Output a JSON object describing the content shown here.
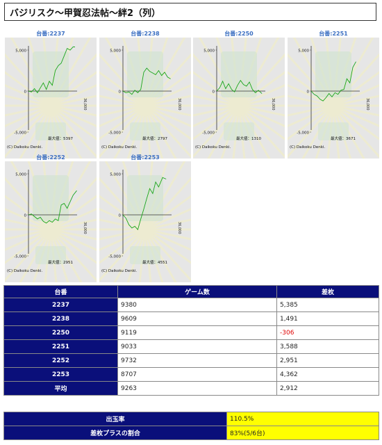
{
  "page": {
    "title": "バジリスク～甲賀忍法帖～絆2（列）"
  },
  "chart_data": [
    {
      "type": "line",
      "label": "台番:2237",
      "max_label": "最大値：5397",
      "copyright": "(C) Daikoku Denki.",
      "x_end_label": "36,000",
      "yticks": [
        "5,000",
        "0",
        "-5,000"
      ],
      "ylim": [
        -5000,
        5000
      ],
      "x": [
        0,
        600,
        1200,
        1800,
        2400,
        3000,
        3600,
        4200,
        4800,
        5400,
        6000,
        6600,
        7200,
        7800,
        8400,
        9000,
        9380
      ],
      "values": [
        0,
        -100,
        300,
        -200,
        400,
        1000,
        200,
        1200,
        700,
        2500,
        3100,
        3400,
        4300,
        5200,
        5000,
        5397,
        5385
      ]
    },
    {
      "type": "line",
      "label": "台番:2238",
      "max_label": "最大値：2797",
      "copyright": "(C) Daikoku Denki.",
      "x_end_label": "36,000",
      "yticks": [
        "5,000",
        "0",
        "-5,000"
      ],
      "ylim": [
        -5000,
        5000
      ],
      "x": [
        0,
        600,
        1200,
        1800,
        2400,
        3000,
        3600,
        4200,
        4800,
        5400,
        6000,
        6600,
        7200,
        7800,
        8400,
        9000,
        9609
      ],
      "values": [
        0,
        -200,
        -100,
        -400,
        100,
        -200,
        200,
        2300,
        2800,
        2400,
        2200,
        2000,
        2500,
        1900,
        2300,
        1700,
        1491
      ]
    },
    {
      "type": "line",
      "label": "台番:2250",
      "max_label": "最大値：1310",
      "copyright": "(C) Daikoku Denki.",
      "x_end_label": "36,000",
      "yticks": [
        "5,000",
        "0",
        "-5,000"
      ],
      "ylim": [
        -5000,
        5000
      ],
      "x": [
        0,
        600,
        1200,
        1800,
        2400,
        3000,
        3600,
        4200,
        4800,
        5400,
        6000,
        6600,
        7200,
        7800,
        8400,
        9119
      ],
      "values": [
        0,
        400,
        1200,
        300,
        900,
        200,
        -100,
        700,
        1300,
        800,
        600,
        1100,
        200,
        -200,
        100,
        -306
      ]
    },
    {
      "type": "line",
      "label": "台番:2251",
      "max_label": "最大値：3671",
      "copyright": "(C) Daikoku Denki.",
      "x_end_label": "36,000",
      "yticks": [
        "5,000",
        "0",
        "-5,000"
      ],
      "ylim": [
        -5000,
        5000
      ],
      "x": [
        0,
        600,
        1200,
        1800,
        2400,
        3000,
        3600,
        4200,
        4800,
        5400,
        6000,
        6600,
        7200,
        7800,
        8400,
        9033
      ],
      "values": [
        0,
        -400,
        -600,
        -1000,
        -1200,
        -800,
        -300,
        -700,
        -200,
        -400,
        100,
        200,
        1500,
        1000,
        2900,
        3588
      ]
    },
    {
      "type": "line",
      "label": "台番:2252",
      "max_label": "最大値：2951",
      "copyright": "(C) Daikoku Denki.",
      "x_end_label": "36,000",
      "yticks": [
        "5,000",
        "0",
        "-5,000"
      ],
      "ylim": [
        -5000,
        5000
      ],
      "x": [
        0,
        600,
        1200,
        1800,
        2400,
        3000,
        3600,
        4200,
        4800,
        5400,
        6000,
        6600,
        7200,
        7800,
        8400,
        9000,
        9732
      ],
      "values": [
        0,
        100,
        -200,
        -500,
        -300,
        -800,
        -1000,
        -700,
        -900,
        -500,
        -700,
        1200,
        1400,
        800,
        1600,
        2400,
        2951
      ]
    },
    {
      "type": "line",
      "label": "台番:2253",
      "max_label": "最大値：4551",
      "copyright": "(C) Daikoku Denki.",
      "x_end_label": "36,000",
      "yticks": [
        "5,000",
        "0",
        "-5,000"
      ],
      "ylim": [
        -5000,
        5000
      ],
      "x": [
        0,
        600,
        1200,
        1800,
        2400,
        3000,
        3600,
        4200,
        4800,
        5400,
        6000,
        6600,
        7200,
        8000,
        8707
      ],
      "values": [
        0,
        -400,
        -1200,
        -1600,
        -1400,
        -1800,
        -500,
        700,
        2000,
        3200,
        2600,
        4000,
        3400,
        4551,
        4362
      ]
    }
  ],
  "table": {
    "headers": [
      "台番",
      "ゲーム数",
      "差枚"
    ],
    "rows": [
      {
        "machine": "2237",
        "games": "9380",
        "diff": "5,385",
        "negative": false
      },
      {
        "machine": "2238",
        "games": "9609",
        "diff": "1,491",
        "negative": false
      },
      {
        "machine": "2250",
        "games": "9119",
        "diff": "-306",
        "negative": true
      },
      {
        "machine": "2251",
        "games": "9033",
        "diff": "3,588",
        "negative": false
      },
      {
        "machine": "2252",
        "games": "9732",
        "diff": "2,951",
        "negative": false
      },
      {
        "machine": "2253",
        "games": "8707",
        "diff": "4,362",
        "negative": false
      },
      {
        "machine": "平均",
        "games": "9263",
        "diff": "2,912",
        "negative": false
      }
    ]
  },
  "summary": [
    {
      "label": "出玉率",
      "value": "110.5%"
    },
    {
      "label": "差枚プラスの割合",
      "value": "83%(5/6台)"
    }
  ],
  "colors": {
    "header_bg": "#0a0f7a",
    "line": "#1aa51a",
    "negative": "#e00000",
    "highlight": "#ffff00",
    "label_blue": "#3b6fc2"
  }
}
